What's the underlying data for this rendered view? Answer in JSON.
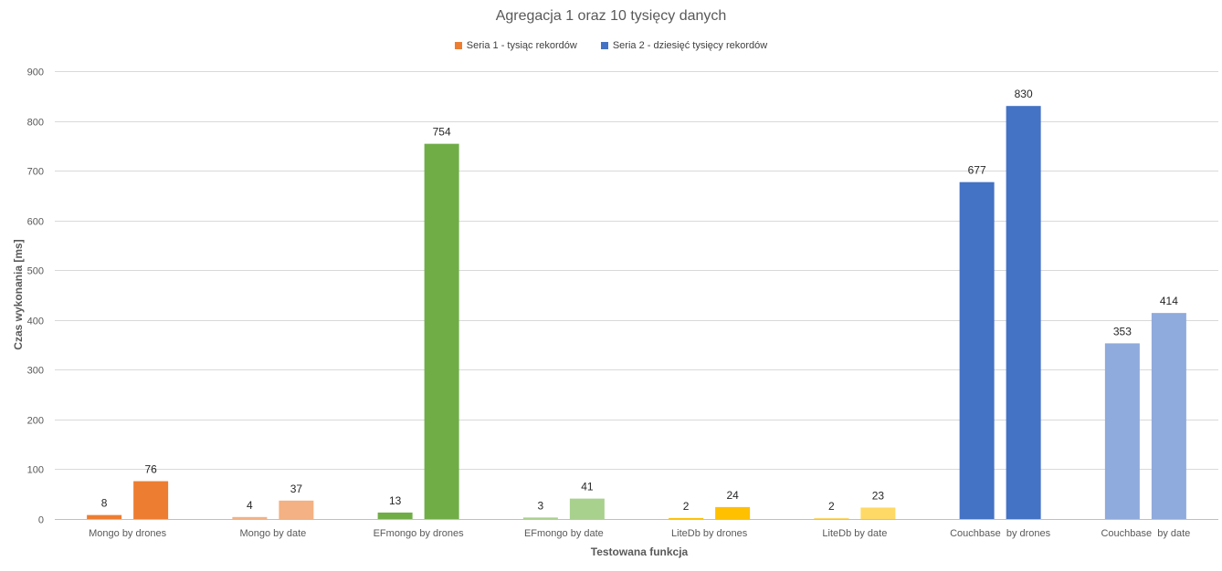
{
  "chart_data": {
    "type": "bar",
    "title": "Agregacja 1 oraz 10 tysięcy danych",
    "xlabel": "Testowana funkcja",
    "ylabel": "Czas wykonania [ms]",
    "ylim": [
      0,
      900
    ],
    "yticks": [
      0,
      100,
      200,
      300,
      400,
      500,
      600,
      700,
      800,
      900
    ],
    "grid": true,
    "legend_position": "top-center",
    "categories": [
      "Mongo by drones",
      "Mongo by date",
      "EFmongo by drones",
      "EFmongo by date",
      "LiteDb by drones",
      "LiteDb by date",
      "Couchbase  by drones",
      "Couchbase  by date"
    ],
    "series": [
      {
        "name": "Seria 1 - tysiąc rekordów",
        "legend_color": "#ED7D31",
        "values": [
          8,
          4,
          13,
          3,
          2,
          2,
          677,
          353
        ]
      },
      {
        "name": "Seria 2 - dziesięć tysięcy rekordów",
        "legend_color": "#4472C4",
        "values": [
          76,
          37,
          754,
          41,
          24,
          23,
          830,
          414
        ]
      }
    ],
    "category_colors": [
      [
        "#ED7D31",
        "#ED7D31"
      ],
      [
        "#F4B183",
        "#F4B183"
      ],
      [
        "#70AD47",
        "#70AD47"
      ],
      [
        "#A9D18E",
        "#A9D18E"
      ],
      [
        "#FFC000",
        "#FFC000"
      ],
      [
        "#FFD966",
        "#FFD966"
      ],
      [
        "#4472C4",
        "#4472C4"
      ],
      [
        "#8FAADC",
        "#8FAADC"
      ]
    ]
  }
}
